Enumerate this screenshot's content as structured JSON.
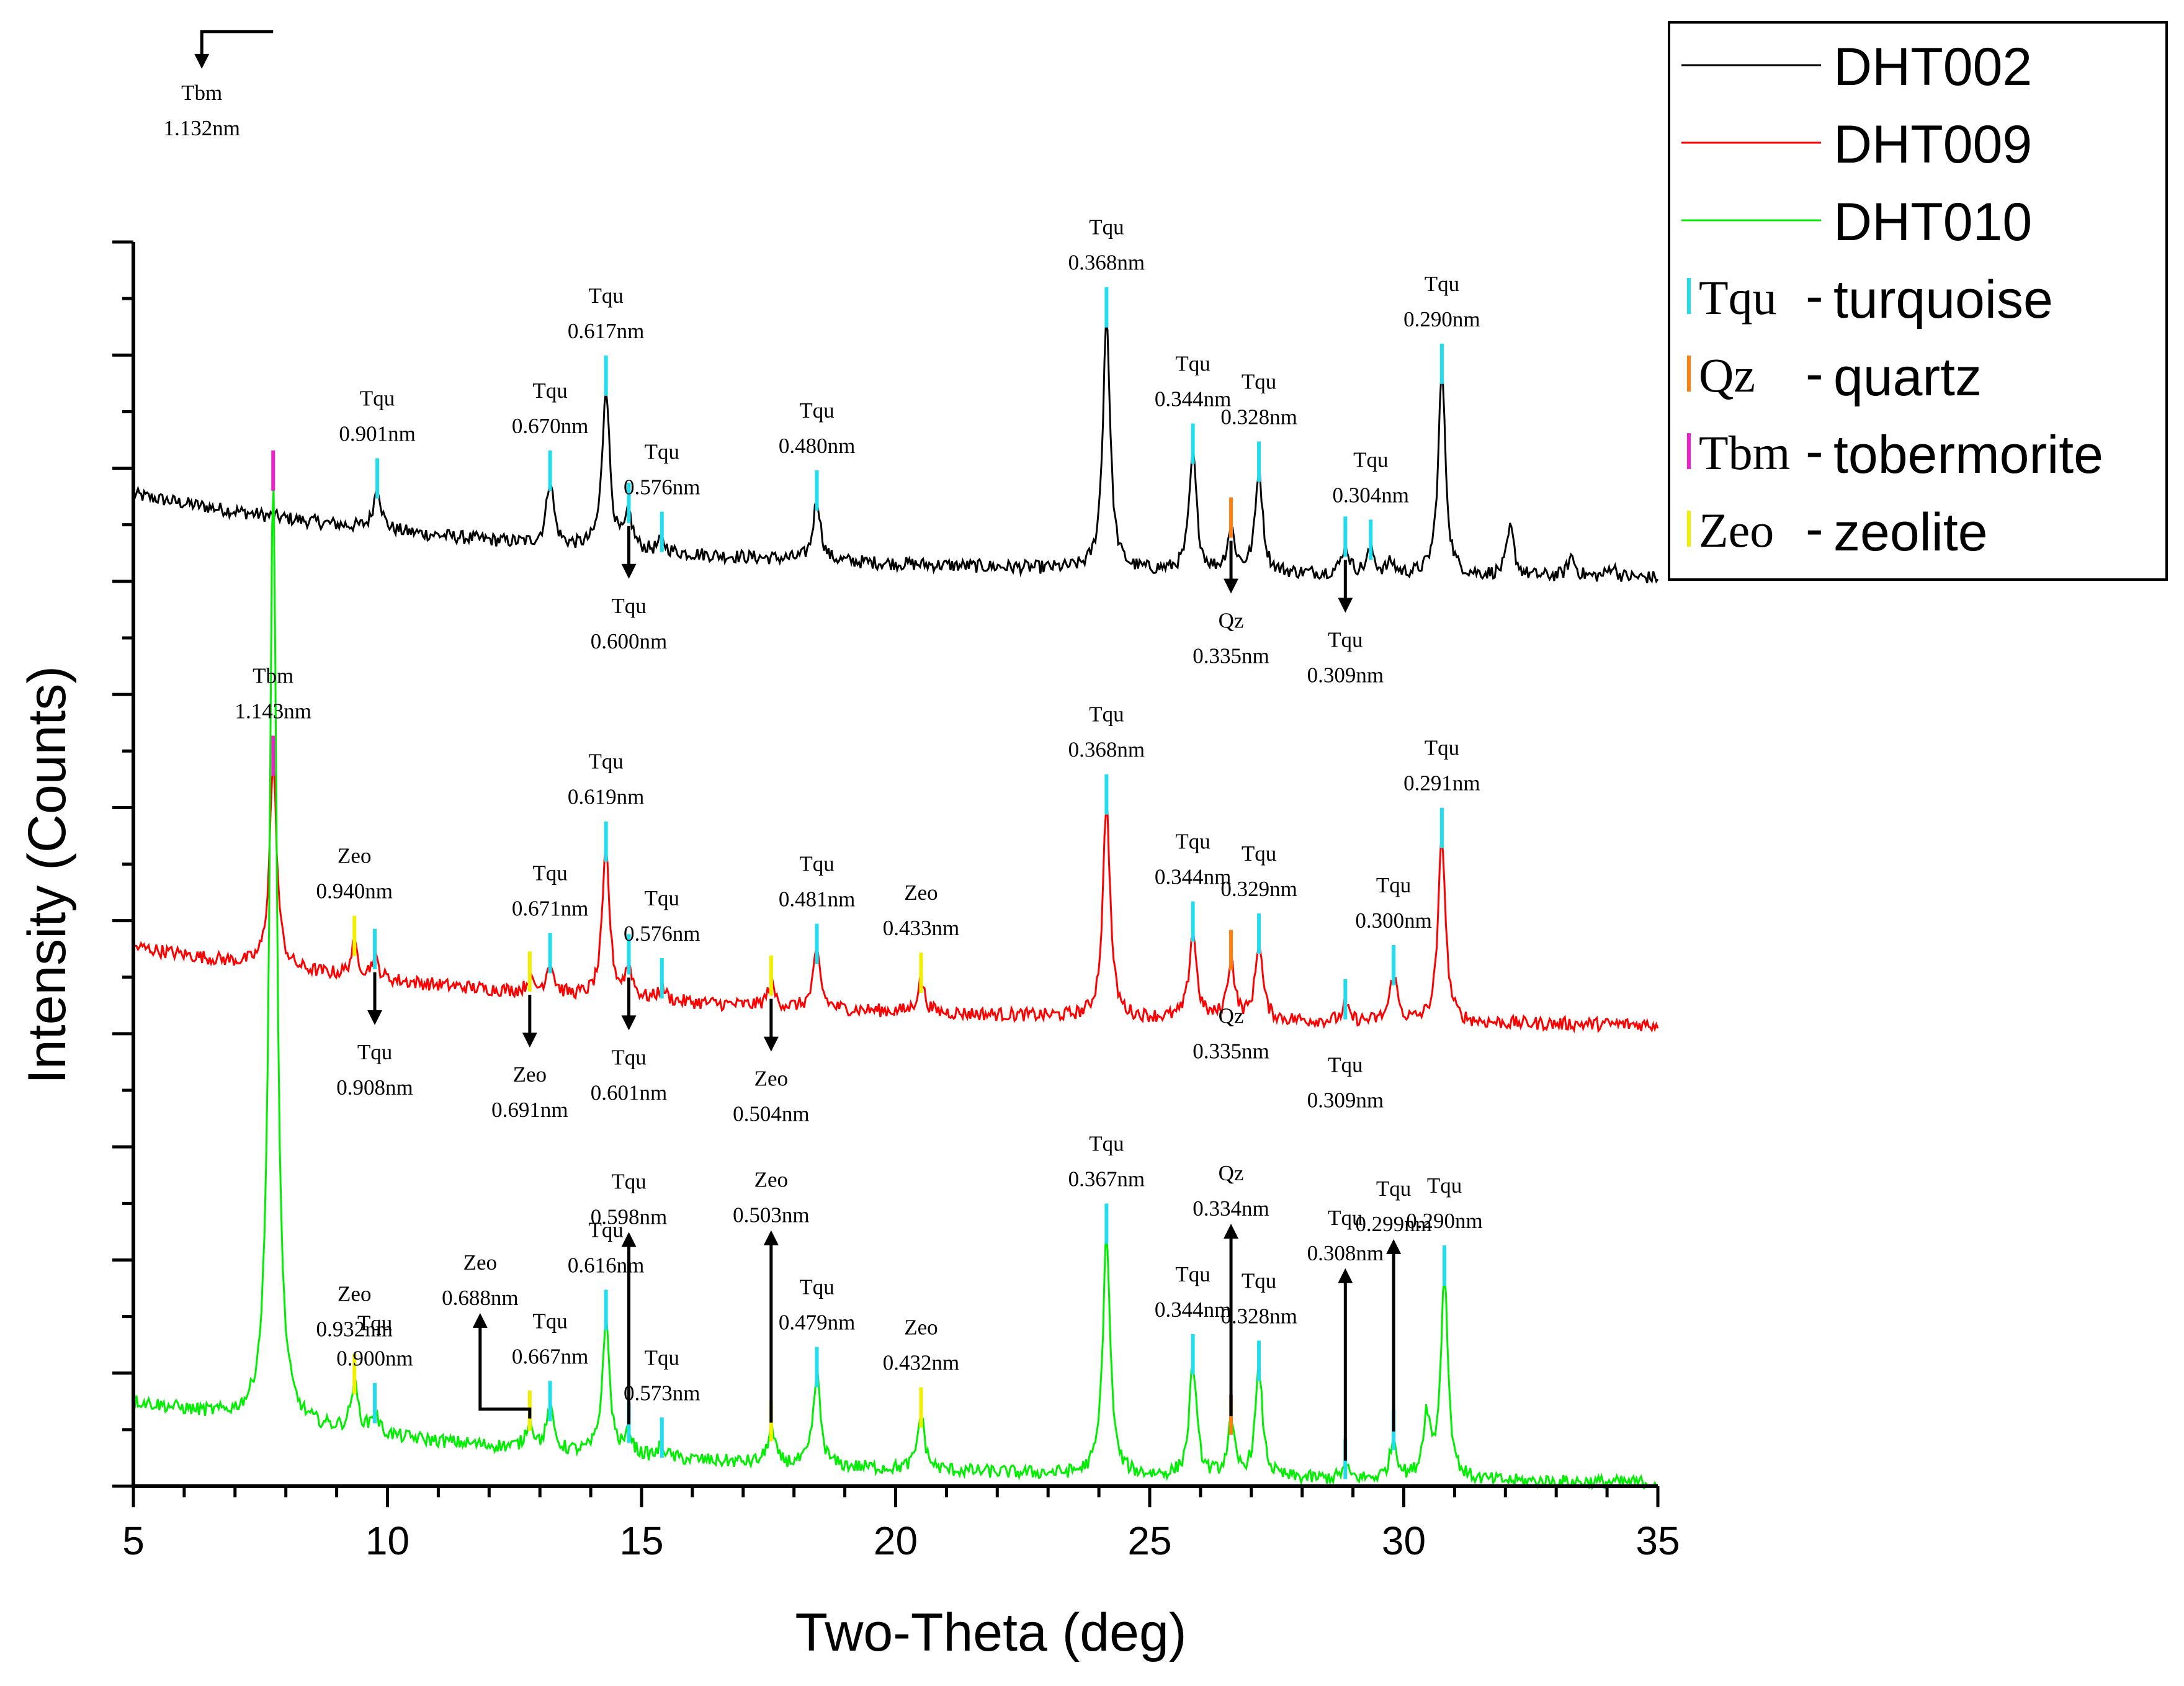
{
  "chart_data": {
    "type": "line",
    "xlabel": "Two-Theta (deg)",
    "ylabel": "Intensity (Counts)",
    "xlim": [
      5,
      35
    ],
    "xticks": [
      5,
      10,
      15,
      20,
      25,
      30,
      35
    ],
    "xtick_labels": [
      "5",
      "10",
      "15",
      "20",
      "25",
      "30",
      "35"
    ],
    "ylim": [
      0,
      1100
    ],
    "y_tick_labels_shown": false,
    "baseline_slope": 0.04,
    "series": [
      {
        "name": "DHT002",
        "color": "#000000",
        "baseline_start": 880,
        "baseline_end": 800,
        "baseline_decay": 120,
        "peaks": [
          [
            9.8,
            38
          ],
          [
            13.2,
            58
          ],
          [
            14.3,
            145
          ],
          [
            14.75,
            30
          ],
          [
            15.4,
            10
          ],
          [
            18.45,
            55
          ],
          [
            24.15,
            225
          ],
          [
            25.85,
            105
          ],
          [
            26.6,
            38
          ],
          [
            27.15,
            90
          ],
          [
            28.85,
            25
          ],
          [
            29.35,
            22
          ],
          [
            29.75,
            10
          ],
          [
            30.75,
            180
          ],
          [
            32.1,
            42
          ],
          [
            33.3,
            18
          ],
          [
            34.1,
            10
          ]
        ]
      },
      {
        "name": "DHT009",
        "color": "#ff0000",
        "baseline_start": 480,
        "baseline_end": 405,
        "baseline_decay": 110,
        "peaks": [
          [
            7.75,
            180
          ],
          [
            9.35,
            28
          ],
          [
            9.75,
            18
          ],
          [
            12.8,
            10
          ],
          [
            13.2,
            28
          ],
          [
            14.3,
            130
          ],
          [
            14.75,
            28
          ],
          [
            15.4,
            12
          ],
          [
            17.55,
            20
          ],
          [
            18.45,
            50
          ],
          [
            20.5,
            28
          ],
          [
            24.15,
            190
          ],
          [
            25.85,
            78
          ],
          [
            26.6,
            52
          ],
          [
            27.15,
            68
          ],
          [
            28.85,
            12
          ],
          [
            29.8,
            42
          ],
          [
            30.75,
            165
          ]
        ]
      },
      {
        "name": "DHT010",
        "color": "#00ee00",
        "baseline_start": 78,
        "baseline_end": 0,
        "baseline_decay": 90,
        "peaks": [
          [
            7.75,
            835
          ],
          [
            9.35,
            42
          ],
          [
            9.75,
            18
          ],
          [
            12.8,
            25
          ],
          [
            13.2,
            35
          ],
          [
            14.3,
            120
          ],
          [
            14.75,
            18
          ],
          [
            15.4,
            10
          ],
          [
            17.55,
            30
          ],
          [
            18.45,
            80
          ],
          [
            20.5,
            48
          ],
          [
            24.15,
            215
          ],
          [
            25.85,
            100
          ],
          [
            26.6,
            45
          ],
          [
            27.15,
            95
          ],
          [
            28.85,
            10
          ],
          [
            29.8,
            35
          ],
          [
            30.45,
            55
          ],
          [
            30.8,
            180
          ]
        ]
      }
    ],
    "phases": [
      {
        "abbr": "Tqu",
        "name": "turquoise",
        "color": "#22ddee"
      },
      {
        "abbr": "Qz",
        "name": "quartz",
        "color": "#ff7f0e"
      },
      {
        "abbr": "Tbm",
        "name": "tobermorite",
        "color": "#ee22cc"
      },
      {
        "abbr": "Zeo",
        "name": "zeolite",
        "color": "#f0f000"
      }
    ],
    "legend": {
      "position": "top-right",
      "entries": [
        {
          "label": "DHT002",
          "kind": "line",
          "color": "#000000"
        },
        {
          "label": "DHT009",
          "kind": "line",
          "color": "#ff0000"
        },
        {
          "label": "DHT010",
          "kind": "line",
          "color": "#00ee00"
        },
        {
          "abbr": "Tqu",
          "sep": "-",
          "label": "turquoise",
          "kind": "bar",
          "color": "#22ddee"
        },
        {
          "abbr": "Qz",
          "sep": "-",
          "label": "quartz",
          "kind": "bar",
          "color": "#ff7f0e"
        },
        {
          "abbr": "Tbm",
          "sep": "-",
          "label": "tobermorite",
          "kind": "bar",
          "color": "#ee22cc"
        },
        {
          "abbr": "Zeo",
          "sep": "-",
          "label": "zeolite",
          "kind": "bar",
          "color": "#f0f000"
        }
      ]
    },
    "annotations": [
      {
        "series": "DHT002",
        "phase": "Tqu",
        "x": 9.8,
        "label": "Tqu",
        "d": "0.901nm",
        "dir": "up"
      },
      {
        "series": "DHT002",
        "phase": "Tqu",
        "x": 13.2,
        "label": "Tqu",
        "d": "0.670nm",
        "dir": "up"
      },
      {
        "series": "DHT002",
        "phase": "Tqu",
        "x": 14.3,
        "label": "Tqu",
        "d": "0.617nm",
        "dir": "up"
      },
      {
        "series": "DHT002",
        "phase": "Tqu",
        "x": 14.75,
        "label": "Tqu",
        "d": "0.600nm",
        "dir": "down"
      },
      {
        "series": "DHT002",
        "phase": "Tqu",
        "x": 15.4,
        "label": "Tqu",
        "d": "0.576nm",
        "dir": "up"
      },
      {
        "series": "DHT002",
        "phase": "Tqu",
        "x": 18.45,
        "label": "Tqu",
        "d": "0.480nm",
        "dir": "up"
      },
      {
        "series": "DHT002",
        "phase": "Tqu",
        "x": 24.15,
        "label": "Tqu",
        "d": "0.368nm",
        "dir": "up"
      },
      {
        "series": "DHT002",
        "phase": "Tqu",
        "x": 25.85,
        "label": "Tqu",
        "d": "0.344nm",
        "dir": "up"
      },
      {
        "series": "DHT002",
        "phase": "Qz",
        "x": 26.6,
        "label": "Qz",
        "d": "0.335nm",
        "dir": "down"
      },
      {
        "series": "DHT002",
        "phase": "Tqu",
        "x": 27.15,
        "label": "Tqu",
        "d": "0.328nm",
        "dir": "up"
      },
      {
        "series": "DHT002",
        "phase": "Tqu",
        "x": 28.85,
        "label": "Tqu",
        "d": "0.309nm",
        "dir": "down"
      },
      {
        "series": "DHT002",
        "phase": "Tqu",
        "x": 29.35,
        "label": "Tqu",
        "d": "0.304nm",
        "dir": "up"
      },
      {
        "series": "DHT002",
        "phase": "Tqu",
        "x": 30.75,
        "label": "Tqu",
        "d": "0.290nm",
        "dir": "up"
      },
      {
        "series": "DHT009",
        "phase": "Tbm",
        "x": 7.75,
        "label": "Tbm",
        "d": "1.143nm",
        "dir": "up"
      },
      {
        "series": "DHT009",
        "phase": "Zeo",
        "x": 9.35,
        "label": "Zeo",
        "d": "0.940nm",
        "dir": "up"
      },
      {
        "series": "DHT009",
        "phase": "Tqu",
        "x": 9.75,
        "label": "Tqu",
        "d": "0.908nm",
        "dir": "down"
      },
      {
        "series": "DHT009",
        "phase": "Zeo",
        "x": 12.8,
        "label": "Zeo",
        "d": "0.691nm",
        "dir": "down"
      },
      {
        "series": "DHT009",
        "phase": "Tqu",
        "x": 13.2,
        "label": "Tqu",
        "d": "0.671nm",
        "dir": "up"
      },
      {
        "series": "DHT009",
        "phase": "Tqu",
        "x": 14.3,
        "label": "Tqu",
        "d": "0.619nm",
        "dir": "up"
      },
      {
        "series": "DHT009",
        "phase": "Tqu",
        "x": 14.75,
        "label": "Tqu",
        "d": "0.601nm",
        "dir": "down"
      },
      {
        "series": "DHT009",
        "phase": "Tqu",
        "x": 15.4,
        "label": "Tqu",
        "d": "0.576nm",
        "dir": "up"
      },
      {
        "series": "DHT009",
        "phase": "Zeo",
        "x": 17.55,
        "label": "Zeo",
        "d": "0.504nm",
        "dir": "down"
      },
      {
        "series": "DHT009",
        "phase": "Tqu",
        "x": 18.45,
        "label": "Tqu",
        "d": "0.481nm",
        "dir": "up"
      },
      {
        "series": "DHT009",
        "phase": "Zeo",
        "x": 20.5,
        "label": "Zeo",
        "d": "0.433nm",
        "dir": "up"
      },
      {
        "series": "DHT009",
        "phase": "Tqu",
        "x": 24.15,
        "label": "Tqu",
        "d": "0.368nm",
        "dir": "up"
      },
      {
        "series": "DHT009",
        "phase": "Tqu",
        "x": 25.85,
        "label": "Tqu",
        "d": "0.344nm",
        "dir": "up"
      },
      {
        "series": "DHT009",
        "phase": "Qz",
        "x": 26.6,
        "label": "Qz",
        "d": "0.335nm",
        "dir": "below"
      },
      {
        "series": "DHT009",
        "phase": "Tqu",
        "x": 27.15,
        "label": "Tqu",
        "d": "0.329nm",
        "dir": "up"
      },
      {
        "series": "DHT009",
        "phase": "Tqu",
        "x": 28.85,
        "label": "Tqu",
        "d": "0.309nm",
        "dir": "below"
      },
      {
        "series": "DHT009",
        "phase": "Tqu",
        "x": 29.8,
        "label": "Tqu",
        "d": "0.300nm",
        "dir": "up"
      },
      {
        "series": "DHT009",
        "phase": "Tqu",
        "x": 30.75,
        "label": "Tqu",
        "d": "0.291nm",
        "dir": "up"
      },
      {
        "series": "DHT010",
        "phase": "Tbm",
        "x": 7.75,
        "label": "Tbm",
        "d": "1.132nm",
        "dir": "elbow-down"
      },
      {
        "series": "DHT010",
        "phase": "Zeo",
        "x": 9.35,
        "label": "Zeo",
        "d": "0.932nm",
        "dir": "up"
      },
      {
        "series": "DHT010",
        "phase": "Tqu",
        "x": 9.75,
        "label": "Tqu",
        "d": "0.900nm",
        "dir": "up"
      },
      {
        "series": "DHT010",
        "phase": "Zeo",
        "x": 12.8,
        "label": "Zeo",
        "d": "0.688nm",
        "dir": "elbow-up"
      },
      {
        "series": "DHT010",
        "phase": "Tqu",
        "x": 13.2,
        "label": "Tqu",
        "d": "0.667nm",
        "dir": "up"
      },
      {
        "series": "DHT010",
        "phase": "Tqu",
        "x": 14.3,
        "label": "Tqu",
        "d": "0.616nm",
        "dir": "up"
      },
      {
        "series": "DHT010",
        "phase": "Tqu",
        "x": 14.75,
        "label": "Tqu",
        "d": "0.598nm",
        "dir": "long-up"
      },
      {
        "series": "DHT010",
        "phase": "Tqu",
        "x": 15.4,
        "label": "Tqu",
        "d": "0.573nm",
        "dir": "up"
      },
      {
        "series": "DHT010",
        "phase": "Zeo",
        "x": 17.55,
        "label": "Zeo",
        "d": "0.503nm",
        "dir": "long-up"
      },
      {
        "series": "DHT010",
        "phase": "Tqu",
        "x": 18.45,
        "label": "Tqu",
        "d": "0.479nm",
        "dir": "up"
      },
      {
        "series": "DHT010",
        "phase": "Zeo",
        "x": 20.5,
        "label": "Zeo",
        "d": "0.432nm",
        "dir": "up"
      },
      {
        "series": "DHT010",
        "phase": "Tqu",
        "x": 24.15,
        "label": "Tqu",
        "d": "0.367nm",
        "dir": "up"
      },
      {
        "series": "DHT010",
        "phase": "Tqu",
        "x": 25.85,
        "label": "Tqu",
        "d": "0.344nm",
        "dir": "up"
      },
      {
        "series": "DHT010",
        "phase": "Qz",
        "x": 26.6,
        "label": "Qz",
        "d": "0.334nm",
        "dir": "long-up"
      },
      {
        "series": "DHT010",
        "phase": "Tqu",
        "x": 27.15,
        "label": "Tqu",
        "d": "0.328nm",
        "dir": "up"
      },
      {
        "series": "DHT010",
        "phase": "Tqu",
        "x": 28.85,
        "label": "Tqu",
        "d": "0.308nm",
        "dir": "long-up"
      },
      {
        "series": "DHT010",
        "phase": "Tqu",
        "x": 29.8,
        "label": "Tqu",
        "d": "0.299nm",
        "dir": "long-up"
      },
      {
        "series": "DHT010",
        "phase": "Tqu",
        "x": 30.8,
        "label": "Tqu",
        "d": "0.290nm",
        "dir": "up"
      }
    ]
  }
}
